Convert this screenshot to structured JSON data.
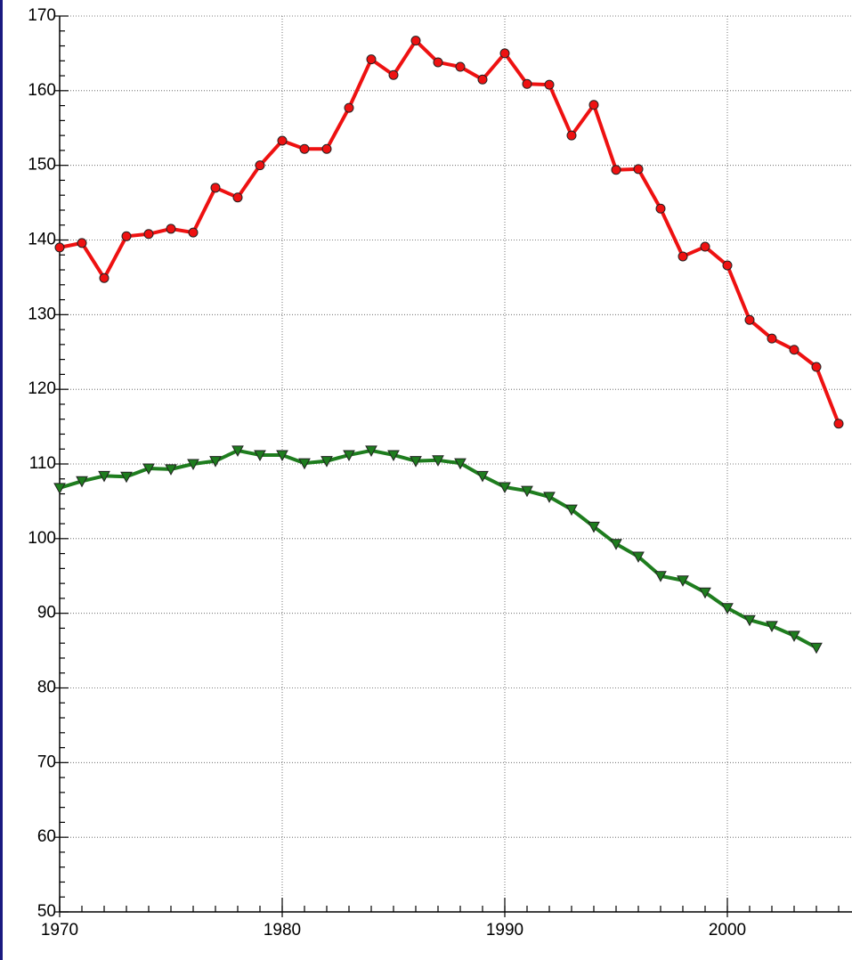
{
  "chart_data": {
    "type": "line",
    "x": [
      1970,
      1971,
      1972,
      1973,
      1974,
      1975,
      1976,
      1977,
      1978,
      1979,
      1980,
      1981,
      1982,
      1983,
      1984,
      1985,
      1986,
      1987,
      1988,
      1989,
      1990,
      1991,
      1992,
      1993,
      1994,
      1995,
      1996,
      1997,
      1998,
      1999,
      2000,
      2001,
      2002,
      2003,
      2004,
      2005
    ],
    "series": [
      {
        "color": "#ee1111",
        "marker": "circle",
        "values": [
          139.0,
          139.6,
          134.9,
          140.5,
          140.8,
          141.5,
          141.0,
          147.0,
          145.7,
          150.0,
          153.3,
          152.2,
          152.2,
          157.7,
          164.2,
          162.1,
          166.7,
          163.8,
          163.2,
          161.5,
          165.0,
          160.9,
          160.8,
          154.0,
          158.1,
          149.4,
          149.5,
          144.2,
          137.8,
          139.1,
          136.6,
          129.3,
          126.8,
          125.3,
          123.0,
          115.4
        ]
      },
      {
        "color": "#1e7d1e",
        "marker": "triangle-down",
        "values": [
          106.8,
          107.7,
          108.4,
          108.3,
          109.4,
          109.3,
          110.0,
          110.4,
          111.8,
          111.2,
          111.2,
          110.1,
          110.4,
          111.2,
          111.8,
          111.2,
          110.4,
          110.5,
          110.1,
          108.4,
          106.9,
          106.4,
          105.6,
          103.9,
          101.6,
          99.3,
          97.6,
          95.0,
          94.4,
          92.8,
          90.7,
          89.1,
          88.3,
          87.0,
          85.4,
          null
        ]
      }
    ],
    "xlim": [
      1970,
      2005.6
    ],
    "xticks": [
      1970,
      1980,
      1990,
      2000
    ],
    "ylim": [
      50,
      170
    ],
    "yticks": [
      50,
      60,
      70,
      80,
      90,
      100,
      110,
      120,
      130,
      140,
      150,
      160,
      170
    ],
    "grid": true
  }
}
